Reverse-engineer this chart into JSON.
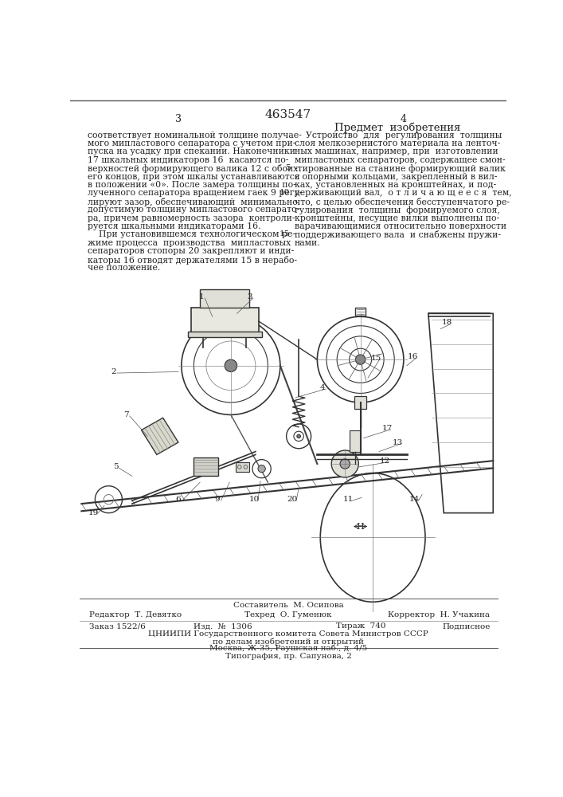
{
  "page_color": "#ffffff",
  "patent_number": "463547",
  "page_left": "3",
  "page_right": "4",
  "title_right": "Предмет  изобретения",
  "left_text": [
    "соответствует номинальной толщине получае-",
    "мого мипластового сепаратора с учетом при-",
    "пуска на усадку при спекании. Наконечники",
    "17 шкальных индикаторов 16  касаются по-",
    "верхностей формирующего валика 12 с обоих",
    "его концов, при этом шкалы устанавливаются",
    "в положении «0». После замера толщины по-",
    "лученного сепаратора вращением гаек 9 регу-",
    "лируют зазор, обеспечивающий  минимально",
    "допустимую толщину мипластового сепарато-",
    "ра, причем равномерность зазора  контроли-",
    "руется шкальными индикаторами 16.",
    "    При установившемся технологическом ре-",
    "жиме процесса  производства  мипластовых",
    "сепараторов стопоры 20 закрепляют и инди-",
    "каторы 16 отводят держателями 15 в нерабо-",
    "чее положение."
  ],
  "right_text": [
    "    Устройство  для  регулирования  толщины",
    "слоя мелкозернистого материала на ленточ-",
    "ных машинах, например, при  изготовлении",
    "мипластовых сепараторов, содержащее смон-",
    "-тированные на станине формирующий валик",
    "с опорными кольцами, закрепленный в вил-",
    "ках, установленных на кронштейнах, и под-",
    "держивающий вал,  о т л и ч а ю щ е е с я  тем,",
    "что, с целью обеспечения бесступенчатого ре-",
    "гулирования  толщины  формируемого слоя,",
    "кронштейны, несущие вилки выполнены по-",
    "варачивающимися относительно поверхности",
    "поддерживающего вала  и снабжены пружи-",
    "нами."
  ],
  "footer_comp": "Составитель  М. Осипова",
  "footer_editor": "Редактор  Т. Девятко",
  "footer_tech": "Техред  О. Гуменюк",
  "footer_corrector": "Корректор  Н. Учакина",
  "footer_order": "Заказ 1522/6",
  "footer_issue": "Изд.  №  1306",
  "footer_print": "Тираж  740",
  "footer_sub": "Подписное",
  "footer_org": "ЦНИИПИ Государственного комитета Совета Министров СССР",
  "footer_dept": "по делам изобретений и открытий",
  "footer_addr": "Москва, Ж-35, Раушская наб., д. 4/5",
  "footer_print2": "Типография, пр. Сапунова, 2",
  "lc": "#222222",
  "draw_lc": "#333333"
}
